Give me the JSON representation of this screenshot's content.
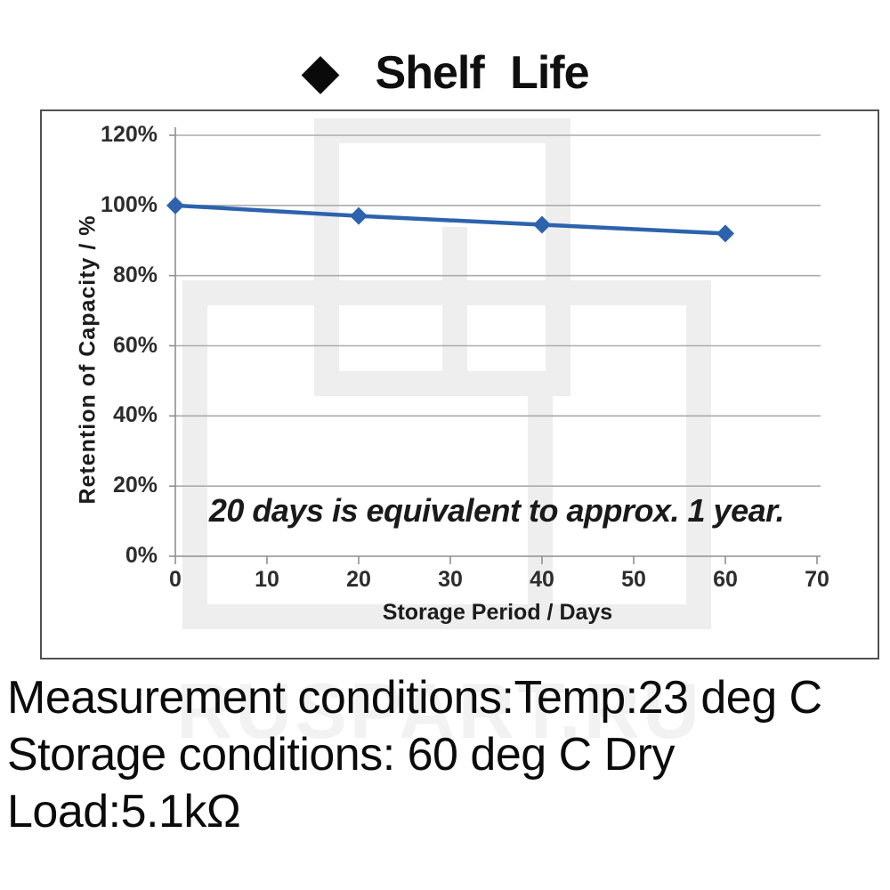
{
  "title": {
    "bullet_icon": "◆",
    "text": "Shelf Life"
  },
  "chart_data": {
    "type": "line",
    "title": "Shelf Life",
    "x": [
      0,
      20,
      40,
      60
    ],
    "series": [
      {
        "name": "Retention of Capacity",
        "values": [
          100,
          97,
          94.5,
          92
        ]
      }
    ],
    "xlabel": "Storage Period / Days",
    "ylabel": "Retention of Capacity / %",
    "xlim": [
      0,
      70
    ],
    "ylim": [
      0,
      120
    ],
    "x_ticks": [
      0,
      10,
      20,
      30,
      40,
      50,
      60,
      70
    ],
    "y_ticks": [
      "0%",
      "20%",
      "40%",
      "60%",
      "80%",
      "100%",
      "120%"
    ],
    "grid": "horizontal",
    "legend": "none",
    "annotation": "20 days is equivalent to approx. 1 year.",
    "line_color": "#2d63ad",
    "marker": "diamond",
    "grid_color": "#ababab",
    "axis_color": "#8f8f8f"
  },
  "footer": {
    "lines": [
      "Measurement conditions:Temp:23 deg C",
      "Storage conditions: 60 deg C Dry",
      "Load:5.1kΩ"
    ]
  },
  "watermark": {
    "text": "RUSPART.RU"
  }
}
